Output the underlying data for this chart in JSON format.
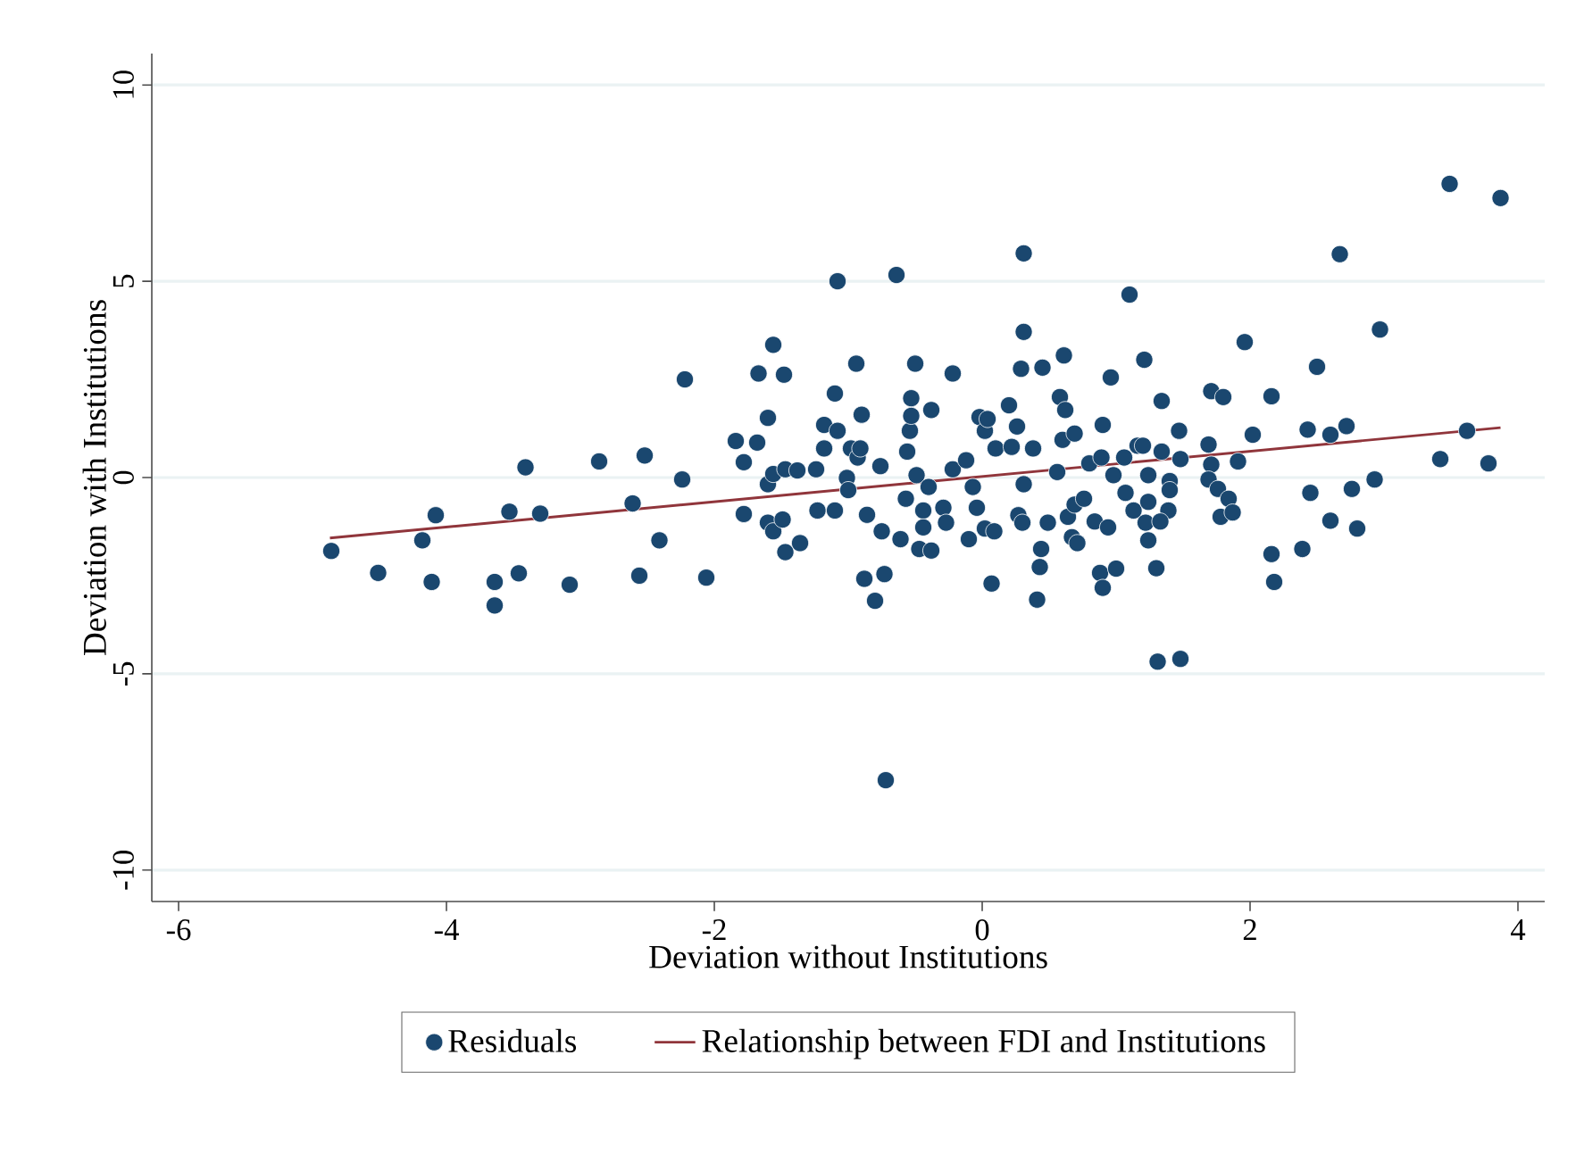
{
  "chart_data": {
    "type": "scatter",
    "xlabel": "Deviation without Institutions",
    "ylabel": "Deviation with Institutions",
    "xlim": [
      -6.2,
      4.2
    ],
    "ylim": [
      -10.8,
      10.8
    ],
    "xticks": [
      -6,
      -4,
      -2,
      0,
      2,
      4
    ],
    "yticks": [
      -10,
      -5,
      0,
      5,
      10
    ],
    "grid": "y",
    "legend": "bottom",
    "series": [
      {
        "name": "Residuals",
        "marker": "circle",
        "color": "#1a476f",
        "x": [
          -4.86,
          -4.51,
          -4.11,
          -4.18,
          -4.08,
          -3.64,
          -3.64,
          -3.46,
          -3.53,
          -3.3,
          -3.41,
          -3.08,
          -2.86,
          -2.61,
          -2.56,
          -2.52,
          -2.41,
          -2.24,
          -2.22,
          -2.06,
          -1.84,
          -1.78,
          -1.78,
          -1.67,
          -1.68,
          -1.6,
          -1.56,
          -1.48,
          -1.6,
          -1.56,
          -1.47,
          -1.38,
          -1.6,
          -1.56,
          -1.49,
          -1.47,
          -1.36,
          -1.24,
          -1.23,
          -1.18,
          -1.18,
          -1.1,
          -1.1,
          -1.08,
          -1.08,
          -1.01,
          -1.0,
          -0.98,
          -0.93,
          -0.91,
          -0.94,
          -0.9,
          -0.86,
          -0.88,
          -0.73,
          -0.8,
          -0.76,
          -0.75,
          -0.72,
          -0.64,
          -0.61,
          -0.57,
          -0.56,
          -0.54,
          -0.53,
          -0.53,
          -0.5,
          -0.49,
          -0.47,
          -0.44,
          -0.44,
          -0.4,
          -0.38,
          -0.38,
          -0.29,
          -0.27,
          -0.22,
          -0.22,
          -0.12,
          -0.1,
          -0.07,
          -0.04,
          -0.02,
          0.02,
          0.04,
          0.02,
          0.09,
          0.07,
          0.1,
          0.2,
          0.22,
          0.26,
          0.27,
          0.3,
          0.31,
          0.31,
          0.31,
          0.29,
          0.38,
          0.45,
          0.44,
          0.43,
          0.41,
          0.49,
          0.56,
          0.58,
          0.62,
          0.61,
          0.6,
          0.69,
          0.64,
          0.69,
          0.76,
          0.67,
          0.71,
          0.8,
          0.89,
          0.84,
          0.94,
          0.9,
          0.88,
          0.9,
          1.0,
          0.96,
          0.98,
          1.07,
          1.06,
          1.1,
          1.16,
          1.13,
          1.21,
          1.24,
          1.24,
          1.22,
          1.24,
          1.3,
          1.34,
          1.31,
          1.34,
          1.4,
          1.39,
          1.47,
          1.2,
          1.48,
          1.4,
          1.33,
          1.48,
          1.69,
          1.71,
          1.8,
          1.71,
          1.69,
          1.76,
          1.84,
          1.78,
          1.87,
          1.91,
          1.96,
          2.02,
          2.16,
          2.16,
          2.18,
          2.39,
          2.43,
          2.45,
          2.5,
          2.6,
          2.6,
          2.67,
          2.72,
          2.76,
          2.8,
          2.93,
          2.97,
          3.42,
          3.49,
          3.62,
          3.78,
          3.87
        ],
        "values": [
          -1.87,
          -2.43,
          -2.66,
          -1.6,
          -0.96,
          -2.66,
          -3.26,
          -2.44,
          -0.87,
          -0.92,
          0.26,
          -2.73,
          0.41,
          -0.66,
          -2.5,
          0.56,
          -1.6,
          -0.05,
          2.5,
          -2.55,
          0.93,
          0.39,
          -0.93,
          2.65,
          0.89,
          1.52,
          3.38,
          2.62,
          -0.17,
          0.09,
          0.21,
          0.18,
          -1.15,
          -1.37,
          -1.07,
          -1.9,
          -1.67,
          0.21,
          -0.84,
          1.34,
          0.74,
          -0.84,
          2.14,
          5.0,
          1.19,
          -0.01,
          -0.32,
          0.74,
          0.51,
          0.74,
          2.9,
          1.6,
          -0.95,
          -2.58,
          -2.46,
          -3.14,
          0.29,
          -1.37,
          -7.71,
          5.16,
          -1.57,
          -0.54,
          0.66,
          1.19,
          2.02,
          1.57,
          2.9,
          0.06,
          -1.82,
          -0.84,
          -1.27,
          -0.24,
          1.72,
          -1.86,
          -0.77,
          -1.15,
          2.65,
          0.21,
          0.44,
          -1.57,
          -0.24,
          -0.77,
          1.54,
          1.19,
          1.49,
          -1.3,
          -1.37,
          -2.7,
          0.74,
          1.84,
          0.78,
          1.3,
          -0.96,
          -1.15,
          -0.17,
          5.71,
          3.71,
          2.77,
          0.74,
          2.8,
          -1.82,
          -2.28,
          -3.11,
          -1.15,
          0.14,
          2.05,
          1.72,
          3.11,
          0.96,
          1.12,
          -1.0,
          -0.69,
          -0.54,
          -1.52,
          -1.67,
          0.36,
          0.51,
          -1.12,
          -1.27,
          1.34,
          -2.43,
          -2.81,
          -2.32,
          2.55,
          0.06,
          -0.39,
          0.51,
          4.66,
          0.81,
          -0.84,
          3.0,
          0.06,
          -0.62,
          -1.15,
          -1.6,
          -2.31,
          1.95,
          -4.69,
          0.66,
          -0.09,
          -0.84,
          1.19,
          0.81,
          -4.62,
          -0.32,
          -1.12,
          0.47,
          0.84,
          2.2,
          2.05,
          0.33,
          -0.05,
          -0.29,
          -0.54,
          -1.0,
          -0.89,
          0.41,
          3.45,
          1.09,
          2.07,
          -1.95,
          -2.66,
          -1.82,
          1.22,
          -0.39,
          2.82,
          1.09,
          -1.1,
          5.69,
          1.31,
          -0.29,
          -1.3,
          -0.05,
          3.77,
          0.47,
          7.48,
          1.19,
          0.36,
          7.12
        ]
      },
      {
        "name": "Relationship between FDI and Institutions",
        "type": "line",
        "marker": "none",
        "color": "#90353b",
        "x": [
          -4.87,
          3.87
        ],
        "values": [
          -1.54,
          1.27
        ]
      }
    ]
  }
}
